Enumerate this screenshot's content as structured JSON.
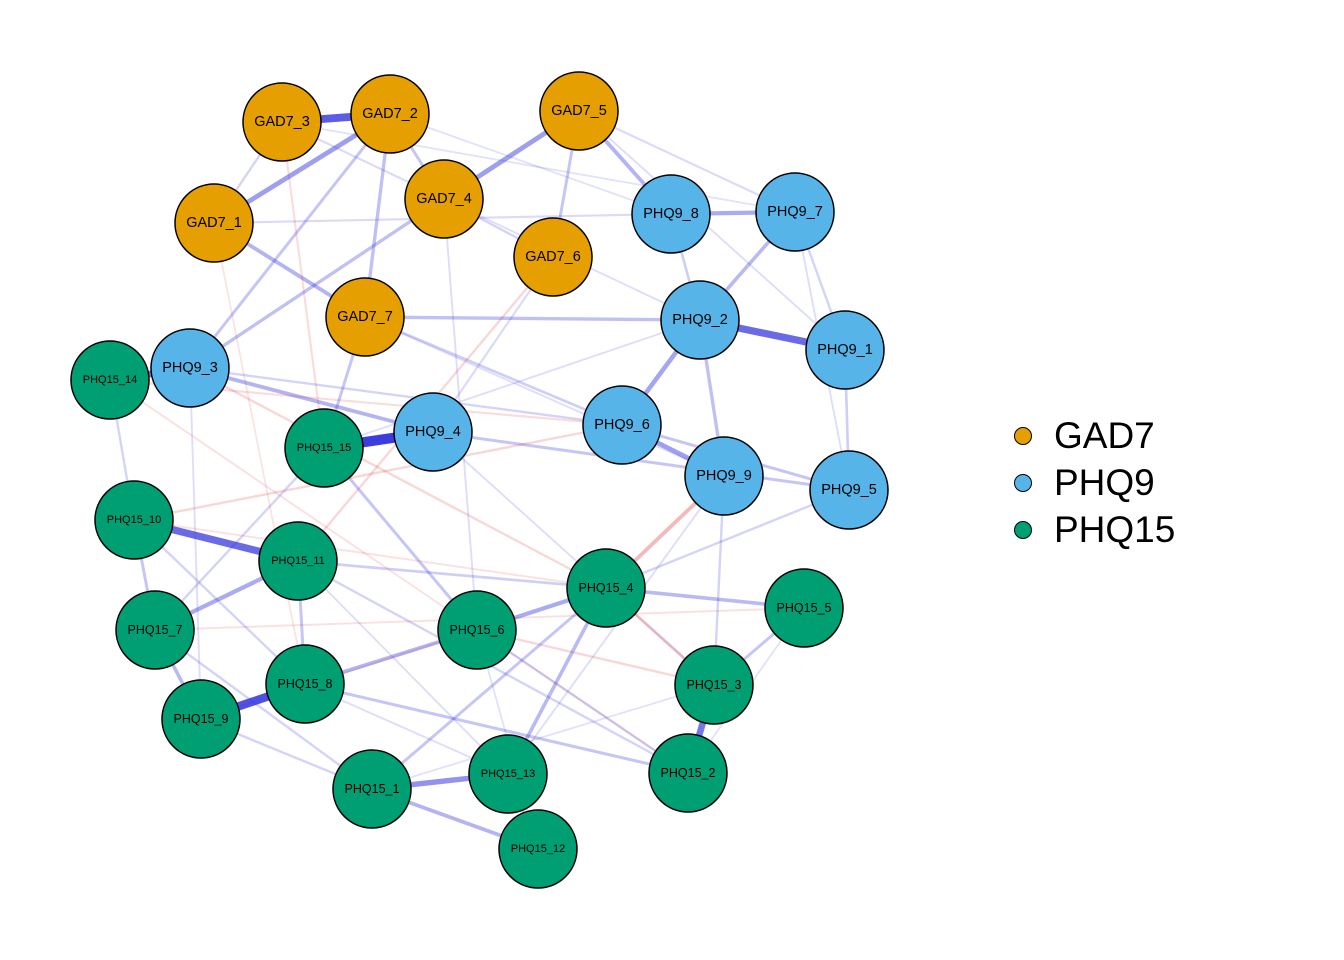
{
  "legend": {
    "items": [
      {
        "label": "GAD7",
        "color": "#E69F00"
      },
      {
        "label": "PHQ9",
        "color": "#56B4E9"
      },
      {
        "label": "PHQ15",
        "color": "#009E73"
      }
    ]
  },
  "edge_colors": {
    "positive": "#3333DD",
    "negative": "#DD4444"
  },
  "nodes": [
    {
      "id": "GAD7_1",
      "group": "GAD7"
    },
    {
      "id": "GAD7_2",
      "group": "GAD7"
    },
    {
      "id": "GAD7_3",
      "group": "GAD7"
    },
    {
      "id": "GAD7_4",
      "group": "GAD7"
    },
    {
      "id": "GAD7_5",
      "group": "GAD7"
    },
    {
      "id": "GAD7_6",
      "group": "GAD7"
    },
    {
      "id": "GAD7_7",
      "group": "GAD7"
    },
    {
      "id": "PHQ9_1",
      "group": "PHQ9"
    },
    {
      "id": "PHQ9_2",
      "group": "PHQ9"
    },
    {
      "id": "PHQ9_3",
      "group": "PHQ9"
    },
    {
      "id": "PHQ9_4",
      "group": "PHQ9"
    },
    {
      "id": "PHQ9_5",
      "group": "PHQ9"
    },
    {
      "id": "PHQ9_6",
      "group": "PHQ9"
    },
    {
      "id": "PHQ9_7",
      "group": "PHQ9"
    },
    {
      "id": "PHQ9_8",
      "group": "PHQ9"
    },
    {
      "id": "PHQ9_9",
      "group": "PHQ9"
    },
    {
      "id": "PHQ15_1",
      "group": "PHQ15"
    },
    {
      "id": "PHQ15_2",
      "group": "PHQ15"
    },
    {
      "id": "PHQ15_3",
      "group": "PHQ15"
    },
    {
      "id": "PHQ15_4",
      "group": "PHQ15"
    },
    {
      "id": "PHQ15_5",
      "group": "PHQ15"
    },
    {
      "id": "PHQ15_6",
      "group": "PHQ15"
    },
    {
      "id": "PHQ15_7",
      "group": "PHQ15"
    },
    {
      "id": "PHQ15_8",
      "group": "PHQ15"
    },
    {
      "id": "PHQ15_9",
      "group": "PHQ15"
    },
    {
      "id": "PHQ15_10",
      "group": "PHQ15"
    },
    {
      "id": "PHQ15_11",
      "group": "PHQ15"
    },
    {
      "id": "PHQ15_12",
      "group": "PHQ15"
    },
    {
      "id": "PHQ15_13",
      "group": "PHQ15"
    },
    {
      "id": "PHQ15_14",
      "group": "PHQ15"
    },
    {
      "id": "PHQ15_15",
      "group": "PHQ15"
    }
  ],
  "edges": [
    {
      "source": "GAD7_2",
      "target": "GAD7_3",
      "weight": 0.55
    },
    {
      "source": "PHQ9_4",
      "target": "PHQ15_15",
      "weight": 0.75
    },
    {
      "source": "PHQ9_2",
      "target": "PHQ9_1",
      "weight": 0.5
    },
    {
      "source": "PHQ15_9",
      "target": "PHQ15_8",
      "weight": 0.6
    },
    {
      "source": "PHQ15_10",
      "target": "PHQ15_11",
      "weight": 0.5
    },
    {
      "source": "PHQ15_3",
      "target": "PHQ15_2",
      "weight": 0.45
    },
    {
      "source": "PHQ15_1",
      "target": "PHQ15_13",
      "weight": 0.35
    },
    {
      "source": "PHQ9_3",
      "target": "PHQ15_14",
      "weight": 0.45
    },
    {
      "source": "GAD7_4",
      "target": "GAD7_5",
      "weight": 0.3
    },
    {
      "source": "GAD7_1",
      "target": "GAD7_2",
      "weight": 0.3
    },
    {
      "source": "PHQ9_8",
      "target": "PHQ9_7",
      "weight": 0.25
    },
    {
      "source": "PHQ9_6",
      "target": "PHQ9_9",
      "weight": 0.3
    },
    {
      "source": "PHQ9_2",
      "target": "PHQ9_6",
      "weight": 0.28
    },
    {
      "source": "PHQ15_4",
      "target": "PHQ15_6",
      "weight": 0.25
    },
    {
      "source": "PHQ15_7",
      "target": "PHQ15_11",
      "weight": 0.25
    },
    {
      "source": "PHQ15_8",
      "target": "PHQ15_6",
      "weight": 0.22
    },
    {
      "source": "PHQ15_13",
      "target": "PHQ15_4",
      "weight": 0.2
    },
    {
      "source": "PHQ15_1",
      "target": "PHQ15_12",
      "weight": 0.22
    },
    {
      "source": "PHQ9_3",
      "target": "PHQ9_4",
      "weight": 0.22
    },
    {
      "source": "GAD7_1",
      "target": "GAD7_7",
      "weight": 0.22
    },
    {
      "source": "GAD7_5",
      "target": "PHQ9_8",
      "weight": 0.22
    },
    {
      "source": "PHQ9_7",
      "target": "PHQ9_2",
      "weight": 0.2
    },
    {
      "source": "PHQ15_4",
      "target": "PHQ15_5",
      "weight": 0.2
    },
    {
      "source": "PHQ9_9",
      "target": "PHQ15_4",
      "weight": -0.22
    },
    {
      "source": "PHQ15_7",
      "target": "PHQ15_9",
      "weight": 0.2
    },
    {
      "source": "PHQ15_10",
      "target": "PHQ15_7",
      "weight": 0.15
    },
    {
      "source": "PHQ15_3",
      "target": "PHQ15_5",
      "weight": 0.15
    },
    {
      "source": "PHQ9_2",
      "target": "PHQ9_9",
      "weight": 0.18
    },
    {
      "source": "GAD7_7",
      "target": "PHQ9_2",
      "weight": 0.18
    },
    {
      "source": "GAD7_5",
      "target": "GAD7_6",
      "weight": 0.15
    },
    {
      "source": "GAD7_4",
      "target": "PHQ9_3",
      "weight": 0.18
    },
    {
      "source": "GAD7_2",
      "target": "GAD7_7",
      "weight": 0.18
    },
    {
      "source": "GAD7_2",
      "target": "GAD7_4",
      "weight": 0.15
    },
    {
      "source": "PHQ9_3",
      "target": "GAD7_2",
      "weight": 0.15
    },
    {
      "source": "GAD7_7",
      "target": "PHQ15_15",
      "weight": 0.15
    },
    {
      "source": "PHQ9_6",
      "target": "PHQ9_5",
      "weight": 0.15
    },
    {
      "source": "PHQ9_4",
      "target": "PHQ9_5",
      "weight": 0.15
    },
    {
      "source": "PHQ15_11",
      "target": "PHQ15_8",
      "weight": 0.15
    },
    {
      "source": "PHQ15_15",
      "target": "PHQ15_6",
      "weight": 0.15
    },
    {
      "source": "PHQ15_8",
      "target": "PHQ15_2",
      "weight": 0.15
    },
    {
      "source": "PHQ15_11",
      "target": "PHQ15_4",
      "weight": 0.12
    },
    {
      "source": "PHQ15_1",
      "target": "PHQ15_4",
      "weight": 0.15
    },
    {
      "source": "PHQ15_4",
      "target": "PHQ15_3",
      "weight": -0.15
    },
    {
      "source": "PHQ9_1",
      "target": "PHQ9_5",
      "weight": 0.12
    },
    {
      "source": "PHQ9_8",
      "target": "PHQ9_2",
      "weight": 0.12
    },
    {
      "source": "GAD7_3",
      "target": "GAD7_1",
      "weight": 0.1
    },
    {
      "source": "GAD7_4",
      "target": "GAD7_6",
      "weight": 0.1
    },
    {
      "source": "GAD7_7",
      "target": "PHQ9_6",
      "weight": 0.12
    },
    {
      "source": "PHQ9_3",
      "target": "PHQ9_6",
      "weight": 0.1
    },
    {
      "source": "PHQ9_5",
      "target": "PHQ15_4",
      "weight": 0.1
    },
    {
      "source": "PHQ9_9",
      "target": "PHQ15_3",
      "weight": 0.1
    },
    {
      "source": "PHQ15_14",
      "target": "PHQ15_10",
      "weight": 0.1
    },
    {
      "source": "PHQ15_7",
      "target": "PHQ15_1",
      "weight": 0.1
    },
    {
      "source": "PHQ15_9",
      "target": "PHQ15_1",
      "weight": 0.1
    },
    {
      "source": "PHQ15_13",
      "target": "PHQ15_12",
      "weight": 0.1
    },
    {
      "source": "PHQ15_6",
      "target": "PHQ15_2",
      "weight": 0.1
    },
    {
      "source": "PHQ15_11",
      "target": "PHQ15_2",
      "weight": 0.1
    },
    {
      "source": "PHQ15_10",
      "target": "PHQ15_8",
      "weight": 0.1
    },
    {
      "source": "PHQ15_15",
      "target": "PHQ15_7",
      "weight": 0.1
    },
    {
      "source": "PHQ9_1",
      "target": "PHQ9_7",
      "weight": 0.1
    },
    {
      "source": "GAD7_5",
      "target": "PHQ9_7",
      "weight": 0.08
    },
    {
      "source": "GAD7_3",
      "target": "GAD7_4",
      "weight": 0.08
    },
    {
      "source": "GAD7_1",
      "target": "PHQ9_8",
      "weight": 0.08
    },
    {
      "source": "GAD7_6",
      "target": "PHQ9_4",
      "weight": 0.08
    },
    {
      "source": "GAD7_6",
      "target": "PHQ15_11",
      "weight": -0.1
    },
    {
      "source": "GAD7_3",
      "target": "PHQ15_15",
      "weight": -0.08
    },
    {
      "source": "PHQ9_3",
      "target": "PHQ15_4",
      "weight": -0.1
    },
    {
      "source": "PHQ9_6",
      "target": "PHQ15_10",
      "weight": -0.1
    },
    {
      "source": "PHQ15_14",
      "target": "PHQ9_6",
      "weight": -0.08
    },
    {
      "source": "PHQ15_6",
      "target": "PHQ15_3",
      "weight": -0.1
    },
    {
      "source": "PHQ15_7",
      "target": "PHQ15_5",
      "weight": -0.06
    },
    {
      "source": "PHQ15_14",
      "target": "PHQ15_2",
      "weight": -0.06
    },
    {
      "source": "PHQ15_13",
      "target": "PHQ9_9",
      "weight": 0.06
    },
    {
      "source": "GAD7_7",
      "target": "PHQ9_9",
      "weight": 0.06
    },
    {
      "source": "PHQ9_7",
      "target": "PHQ9_5",
      "weight": 0.06
    },
    {
      "source": "GAD7_5",
      "target": "PHQ9_1",
      "weight": 0.06
    },
    {
      "source": "PHQ9_4",
      "target": "PHQ15_3",
      "weight": 0.06
    },
    {
      "source": "PHQ15_11",
      "target": "PHQ15_13",
      "weight": 0.06
    },
    {
      "source": "PHQ15_8",
      "target": "PHQ15_13",
      "weight": 0.06
    },
    {
      "source": "PHQ9_3",
      "target": "PHQ15_9",
      "weight": 0.06
    },
    {
      "source": "PHQ9_2",
      "target": "PHQ15_15",
      "weight": 0.06
    },
    {
      "source": "GAD7_4",
      "target": "PHQ15_6",
      "weight": 0.06
    },
    {
      "source": "GAD7_1",
      "target": "PHQ15_8",
      "weight": -0.05
    },
    {
      "source": "GAD7_3",
      "target": "PHQ9_7",
      "weight": 0.05
    },
    {
      "source": "PHQ15_12",
      "target": "PHQ15_6",
      "weight": 0.05
    },
    {
      "source": "PHQ15_5",
      "target": "PHQ15_2",
      "weight": 0.05
    },
    {
      "source": "GAD7_4",
      "target": "PHQ9_2",
      "weight": 0.06
    },
    {
      "source": "PHQ15_10",
      "target": "PHQ15_4",
      "weight": -0.06
    },
    {
      "source": "PHQ15_1",
      "target": "PHQ15_3",
      "weight": 0.05
    },
    {
      "source": "GAD7_2",
      "target": "PHQ9_8",
      "weight": 0.05
    },
    {
      "source": "PHQ15_9",
      "target": "PHQ15_6",
      "weight": -0.05
    }
  ]
}
